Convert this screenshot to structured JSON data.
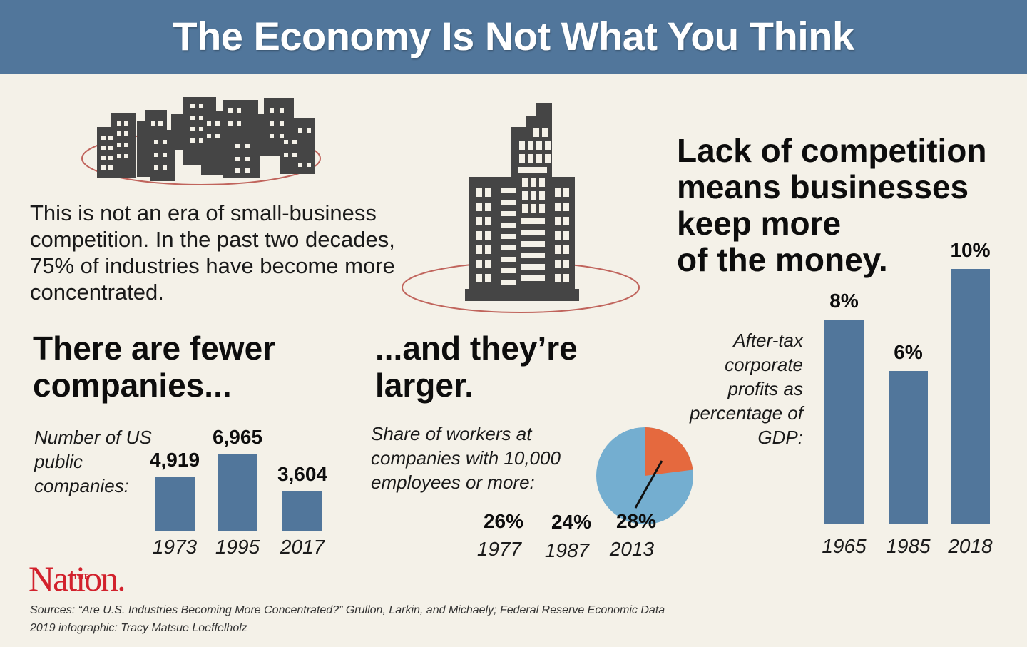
{
  "header": {
    "title": "The Economy Is Not What You Think",
    "background_color": "#51769b"
  },
  "intro": {
    "text": "This is not an era of small-business competition. In the past two decades, 75% of industries have become more concentrated."
  },
  "icons": {
    "small_city": "city-skyline-icon",
    "skyscraper": "skyscraper-icon"
  },
  "sections": {
    "fewer": {
      "headline_line1": "There are fewer",
      "headline_line2": "companies...",
      "label": "Number of US public companies:"
    },
    "larger": {
      "headline_line1": "...and they’re",
      "headline_line2": "larger.",
      "label": "Share of workers at companies with 10,000 employees or more:"
    },
    "profits": {
      "headline_line1": "Lack of competition",
      "headline_line2": "means businesses",
      "headline_line3": "keep more",
      "headline_line4": "of the money.",
      "label": "After-tax corporate profits as percentage of GDP:"
    }
  },
  "chart_data": [
    {
      "type": "bar",
      "title": "Number of US public companies",
      "categories": [
        "1973",
        "1995",
        "2017"
      ],
      "values": [
        4919,
        6965,
        3604
      ],
      "value_labels": [
        "4,919",
        "6,965",
        "3,604"
      ],
      "color": "#51769b",
      "xlabel": "",
      "ylabel": "",
      "ylim": [
        0,
        6965
      ]
    },
    {
      "type": "table",
      "title": "Share of workers at companies with 10,000 employees or more",
      "categories": [
        "1977",
        "1987",
        "2013"
      ],
      "values": [
        26,
        24,
        28
      ],
      "value_labels": [
        "26%",
        "24%",
        "28%"
      ],
      "unit": "%",
      "pie_illustration": {
        "highlight_share": 0.23,
        "highlight_color": "#e5693e",
        "base_color": "#74aed0"
      }
    },
    {
      "type": "bar",
      "title": "After-tax corporate profits as percentage of GDP",
      "categories": [
        "1965",
        "1985",
        "2018"
      ],
      "values": [
        8,
        6,
        10
      ],
      "value_labels": [
        "8%",
        "6%",
        "10%"
      ],
      "unit": "%",
      "color": "#51769b",
      "xlabel": "",
      "ylabel": "",
      "ylim": [
        0,
        10
      ]
    }
  ],
  "footer": {
    "logo_the": "THE",
    "logo_name": "Nation.",
    "sources": "Sources: “Are U.S. Industries Becoming More Concentrated?” Grullon, Larkin, and Michaely; Federal Reserve Economic Data",
    "credit": "2019 infographic: Tracy Matsue Loeffelholz",
    "logo_color": "#d2222d"
  }
}
